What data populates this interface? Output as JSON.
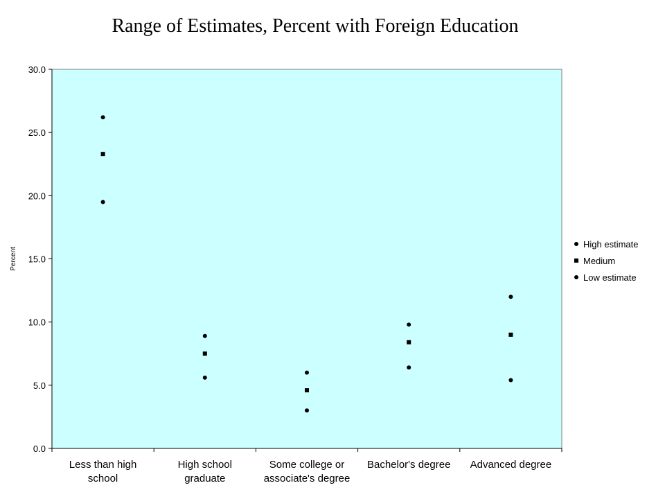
{
  "chart_data": {
    "type": "scatter",
    "title": "Range of Estimates, Percent with Foreign Education",
    "xlabel": "",
    "ylabel": "Percent",
    "ylim": [
      0,
      30
    ],
    "yticks": [
      "0.0",
      "5.0",
      "10.0",
      "15.0",
      "20.0",
      "25.0",
      "30.0"
    ],
    "grid": false,
    "plot_background": "#ccffff",
    "marker_color": "#000000",
    "legend_position": "right",
    "categories": [
      [
        "Less than high",
        "school"
      ],
      [
        "High school",
        "graduate"
      ],
      [
        "Some college or",
        "associate's degree"
      ],
      [
        "Bachelor's degree"
      ],
      [
        "Advanced degree"
      ]
    ],
    "series": [
      {
        "name": "High estimate",
        "marker": "circle",
        "values": [
          26.2,
          8.9,
          6.0,
          9.8,
          12.0
        ]
      },
      {
        "name": "Medium",
        "marker": "square",
        "values": [
          23.3,
          7.5,
          4.6,
          8.4,
          9.0
        ]
      },
      {
        "name": "Low estimate",
        "marker": "circle",
        "values": [
          19.5,
          5.6,
          3.0,
          6.4,
          5.4
        ]
      }
    ]
  }
}
